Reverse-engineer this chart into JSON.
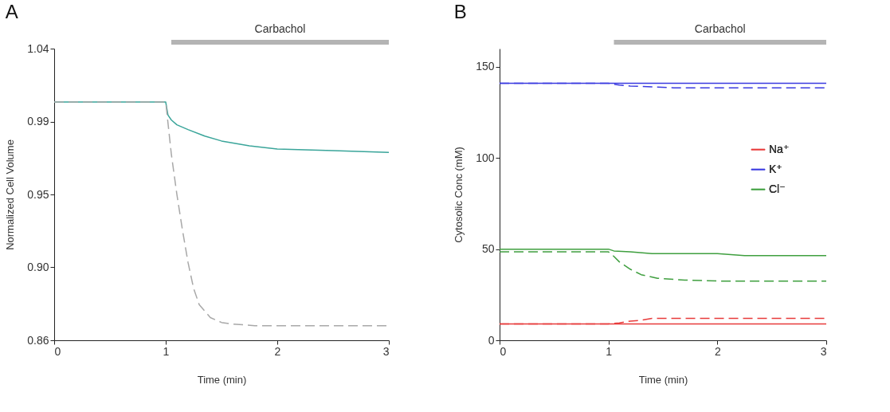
{
  "chart_data": [
    {
      "type": "line",
      "title": "A",
      "xlabel": "Time (min)",
      "ylabel": "Normalized Cell Volume",
      "xlim": [
        0,
        3
      ],
      "xticks": [
        0,
        1,
        2,
        3
      ],
      "ylim": [
        0.86,
        1.04
      ],
      "yticks": [
        0.86,
        {
          "value": 0.905,
          "label": "0.90"
        },
        0.95,
        {
          "value": 0.995,
          "label": "0.99"
        },
        1.04
      ],
      "grid": false,
      "legend": false,
      "annotations": [
        "Carbachol"
      ],
      "series": [
        {
          "color": "#3aa59a",
          "line_style": "solid",
          "x": [
            0,
            1,
            1.02,
            1.05,
            1.1,
            1.2,
            1.35,
            1.5,
            1.75,
            2,
            2.5,
            3
          ],
          "values": [
            1.007,
            1.007,
            0.999,
            0.996,
            0.993,
            0.99,
            0.986,
            0.983,
            0.98,
            0.978,
            0.977,
            0.976
          ]
        },
        {
          "color": "#a8a8a8",
          "line_style": "dashed",
          "x": [
            0,
            1,
            1.05,
            1.1,
            1.15,
            1.2,
            1.25,
            1.3,
            1.4,
            1.5,
            1.6,
            1.8,
            2,
            3
          ],
          "values": [
            1.007,
            1.007,
            0.975,
            0.95,
            0.928,
            0.908,
            0.892,
            0.882,
            0.874,
            0.871,
            0.87,
            0.869,
            0.869,
            0.869
          ]
        }
      ]
    },
    {
      "type": "line",
      "title": "B",
      "xlabel": "Time (min)",
      "ylabel": "Cytosolic Conc (mM)",
      "xlim": [
        0,
        3
      ],
      "xticks": [
        0,
        1,
        2,
        3
      ],
      "ylim": [
        0,
        160
      ],
      "yticks": [
        0,
        50,
        100,
        150
      ],
      "grid": false,
      "legend": "right",
      "annotations": [
        "Carbachol"
      ],
      "series": [
        {
          "name": "Na⁺",
          "color": "#e83b3b",
          "line_style": "solid",
          "x": [
            0,
            1,
            2,
            3
          ],
          "values": [
            9,
            9,
            9,
            9
          ]
        },
        {
          "name": "K⁺",
          "color": "#3a3ae0",
          "line_style": "solid",
          "x": [
            0,
            1,
            2,
            3
          ],
          "values": [
            141,
            141,
            141,
            141
          ]
        },
        {
          "name": "Cl⁻",
          "color": "#3f9f3f",
          "line_style": "solid",
          "x": [
            0,
            1,
            1.05,
            1.2,
            1.4,
            2,
            2.25,
            3
          ],
          "values": [
            50,
            50,
            49,
            48.5,
            47.5,
            47.5,
            46.5,
            46.5
          ]
        },
        {
          "color": "#e83b3b",
          "line_style": "dashed",
          "x": [
            0,
            1,
            1.1,
            1.2,
            1.3,
            1.4,
            1.5,
            3
          ],
          "values": [
            9,
            9,
            9.5,
            10.5,
            11,
            12,
            12,
            12
          ]
        },
        {
          "color": "#3a3ae0",
          "line_style": "dashed",
          "x": [
            0,
            1,
            1.1,
            1.2,
            1.4,
            1.6,
            3
          ],
          "values": [
            141,
            141,
            140,
            139.5,
            139,
            138.5,
            138.5
          ]
        },
        {
          "color": "#3f9f3f",
          "line_style": "dashed",
          "x": [
            0,
            1,
            1.05,
            1.1,
            1.2,
            1.3,
            1.45,
            1.7,
            2,
            3
          ],
          "values": [
            48.5,
            48.5,
            46,
            43,
            39,
            36,
            34,
            33,
            32.5,
            32.5
          ]
        }
      ]
    }
  ]
}
